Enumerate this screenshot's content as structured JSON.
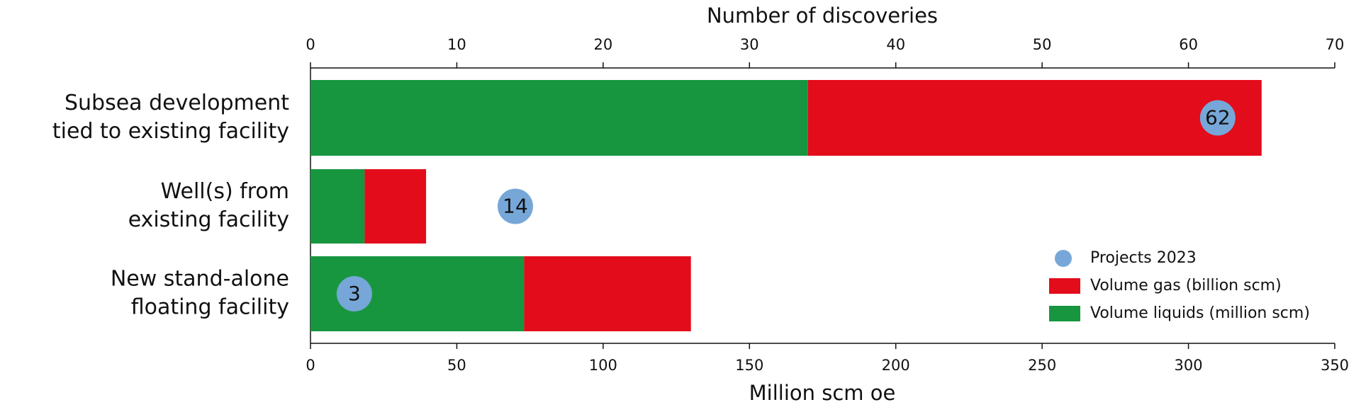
{
  "chart_data": {
    "type": "bar",
    "orientation": "horizontal",
    "stacked": true,
    "xlabel": "Million scm oe",
    "x2label": "Number of discoveries",
    "categories": [
      [
        "Subsea development",
        "tied to existing facility"
      ],
      [
        "Well(s) from",
        "existing facility"
      ],
      [
        "New stand-alone",
        "floating facility"
      ]
    ],
    "xlim": [
      0,
      350
    ],
    "xticks": [
      0,
      50,
      100,
      150,
      200,
      250,
      300,
      350
    ],
    "x2lim": [
      0,
      70
    ],
    "x2ticks": [
      0,
      10,
      20,
      30,
      40,
      50,
      60,
      70
    ],
    "series": [
      {
        "name": "Volume liquids (million scm)",
        "color": "#17963f",
        "values": [
          170,
          18.5,
          73
        ]
      },
      {
        "name": "Volume gas (billion scm)",
        "color": "#e30c1b",
        "values": [
          155,
          21,
          57
        ]
      }
    ],
    "bubbles": {
      "name": "Projects 2023",
      "color": "#76a7d8",
      "axis": "x2",
      "values": [
        62,
        14,
        3
      ]
    }
  }
}
